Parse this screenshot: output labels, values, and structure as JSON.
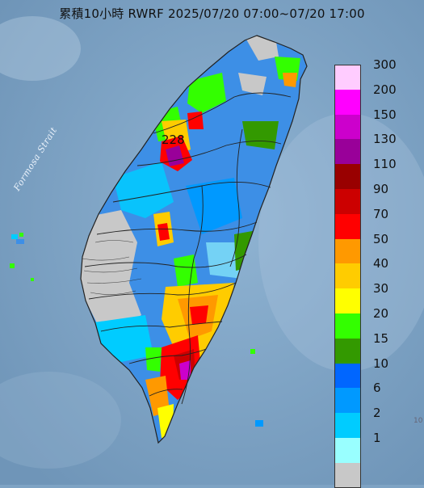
{
  "title": "累積10小時 RWRF 2025/07/20 07:00~07/20 17:00",
  "map": {
    "strait_label": "Formosa Strait",
    "max_value_label": "228",
    "edge_label": "10",
    "colors": {
      "sea": "#7ea3c4",
      "land_base": "#3d8fe6",
      "boundary": "#222222"
    }
  },
  "legend": {
    "entries": [
      {
        "label": "300",
        "color": "#ffccff"
      },
      {
        "label": "200",
        "color": "#ff00ff"
      },
      {
        "label": "150",
        "color": "#cc00cc"
      },
      {
        "label": "130",
        "color": "#990099"
      },
      {
        "label": "110",
        "color": "#990000"
      },
      {
        "label": "90",
        "color": "#cc0000"
      },
      {
        "label": "70",
        "color": "#ff0000"
      },
      {
        "label": "50",
        "color": "#ff9900"
      },
      {
        "label": "40",
        "color": "#ffcc00"
      },
      {
        "label": "30",
        "color": "#ffff00"
      },
      {
        "label": "20",
        "color": "#33ff00"
      },
      {
        "label": "15",
        "color": "#339900"
      },
      {
        "label": "10",
        "color": "#0066ff"
      },
      {
        "label": "6",
        "color": "#0099ff"
      },
      {
        "label": "2",
        "color": "#00ccff"
      },
      {
        "label": "1",
        "color": "#99ffff"
      },
      {
        "label": "",
        "color": "#c8c8c8"
      }
    ]
  }
}
